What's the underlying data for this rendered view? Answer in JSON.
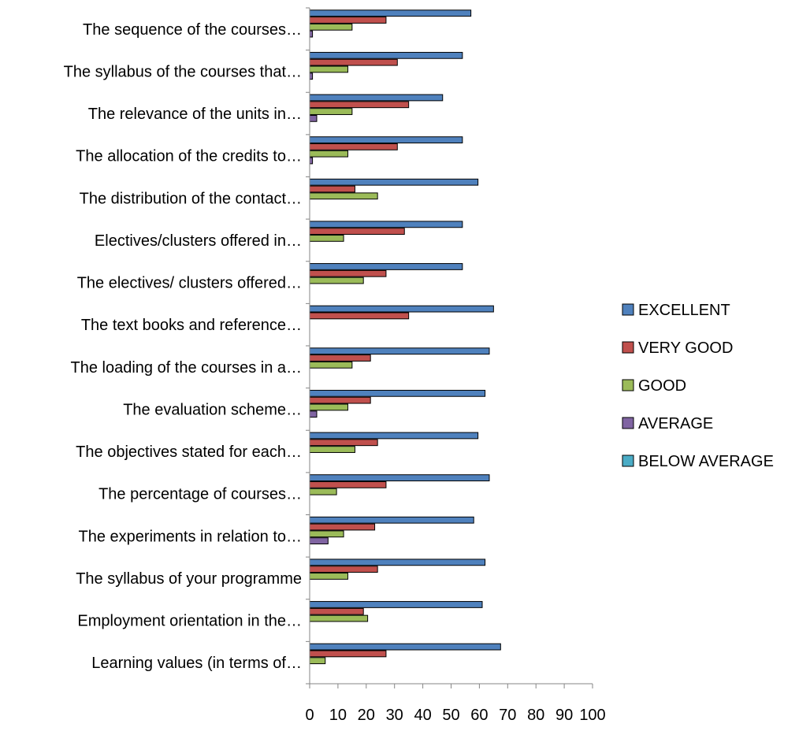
{
  "chart_data": {
    "type": "bar",
    "orientation": "horizontal",
    "categories": [
      "The sequence of the courses…",
      "The syllabus of the courses that…",
      "The relevance of the units in…",
      "The allocation of the credits to…",
      "The distribution of the contact…",
      "Electives/clusters offered in…",
      "The electives/ clusters offered…",
      "The text books and reference…",
      "The loading of the courses in a…",
      "The evaluation scheme…",
      "The objectives stated for each…",
      "The percentage of courses…",
      "The experiments in relation to…",
      "The syllabus of your programme",
      "Employment orientation in the…",
      "Learning values (in terms of…"
    ],
    "series": [
      {
        "name": "EXCELLENT",
        "color": "#4F81BD",
        "values": [
          57,
          54,
          47,
          54,
          59.5,
          54,
          54,
          65,
          63.5,
          62,
          59.5,
          63.5,
          58,
          62,
          61,
          67.5
        ]
      },
      {
        "name": "VERY GOOD",
        "color": "#C0504D",
        "values": [
          27,
          31,
          35,
          31,
          16,
          33.5,
          27,
          35,
          21.5,
          21.5,
          24,
          27,
          23,
          24,
          19,
          27
        ]
      },
      {
        "name": "GOOD",
        "color": "#9BBB59",
        "values": [
          15,
          13.5,
          15,
          13.5,
          24,
          12,
          19,
          0,
          15,
          13.5,
          16,
          9.5,
          12,
          13.5,
          20.5,
          5.5
        ]
      },
      {
        "name": "AVERAGE",
        "color": "#8064A2",
        "values": [
          1,
          1,
          2.5,
          1,
          0,
          0,
          0,
          0,
          0,
          2.5,
          0,
          0,
          6.5,
          0,
          0,
          0
        ]
      },
      {
        "name": "BELOW AVERAGE",
        "color": "#4BACC6",
        "values": [
          0,
          0,
          0,
          0,
          0,
          0,
          0,
          0,
          0,
          0,
          0,
          0,
          0,
          0,
          0,
          0
        ]
      }
    ],
    "xlim": [
      0,
      100
    ],
    "xticks": [
      "0",
      "10",
      "20",
      "30",
      "40",
      "50",
      "60",
      "70",
      "80",
      "90",
      "100"
    ],
    "grid": false,
    "legend_position": "right",
    "title": "",
    "xlabel": "",
    "ylabel": ""
  }
}
